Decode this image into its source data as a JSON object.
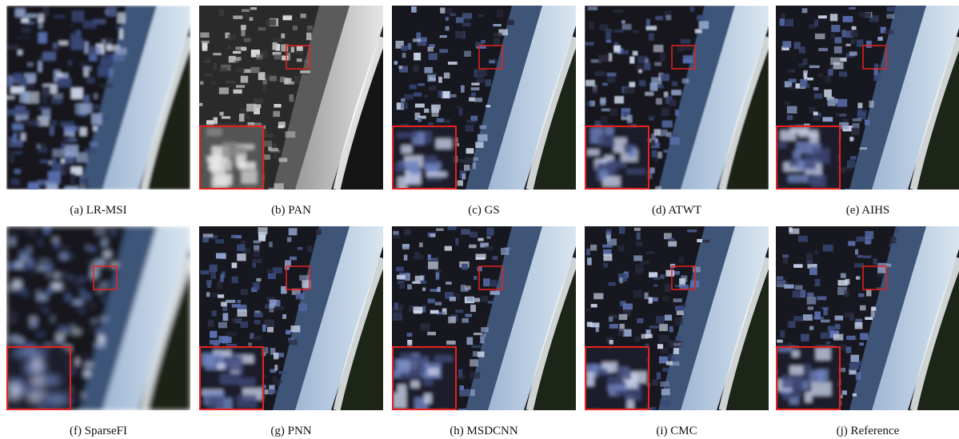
{
  "figure": {
    "panels": [
      {
        "id": "lr-msi",
        "caption": "(a)  LR-MSI",
        "style": "lowres",
        "has_inset": false
      },
      {
        "id": "pan",
        "caption": "(b)  PAN",
        "style": "gray",
        "has_inset": true
      },
      {
        "id": "gs",
        "caption": "(c)  GS",
        "style": "color",
        "has_inset": true
      },
      {
        "id": "atwt",
        "caption": "(d)  ATWT",
        "style": "color-soft",
        "has_inset": true
      },
      {
        "id": "aihs",
        "caption": "(e)  AIHS",
        "style": "color",
        "has_inset": true
      },
      {
        "id": "sparsefi",
        "caption": "(f)  SparseFI",
        "style": "blurry",
        "has_inset": true
      },
      {
        "id": "pnn",
        "caption": "(g)  PNN",
        "style": "color",
        "has_inset": true
      },
      {
        "id": "msdcnn",
        "caption": "(h)  MSDCNN",
        "style": "color",
        "has_inset": true
      },
      {
        "id": "cmc",
        "caption": "(i)  CMC",
        "style": "color",
        "has_inset": true
      },
      {
        "id": "reference",
        "caption": "(j)  Reference",
        "style": "color",
        "has_inset": true
      }
    ],
    "colors": {
      "highlight_box": "#e8211f",
      "sea": "#1d2418",
      "beach": "#d9e6f0",
      "road": "#3e5578",
      "buildings_dark": "#17181f"
    }
  }
}
